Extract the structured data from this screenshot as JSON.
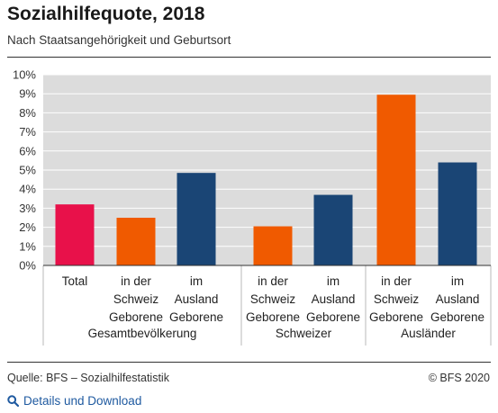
{
  "header": {
    "title": "Sozialhilfequote, 2018",
    "subtitle": "Nach Staatsangehörigkeit und Geburtsort"
  },
  "footer": {
    "source": "Quelle: BFS – Sozialhilfestatistik",
    "copyright": "© BFS 2020",
    "details_link": "Details und Download",
    "details_icon": "search-icon",
    "link_color": "#1f5aa0"
  },
  "chart_data": {
    "type": "bar",
    "ylim": [
      0,
      10
    ],
    "yticks": [
      "0%",
      "1%",
      "2%",
      "3%",
      "4%",
      "5%",
      "6%",
      "7%",
      "8%",
      "9%",
      "10%"
    ],
    "grid": true,
    "plot_background": "#dcdcdc",
    "groups": [
      {
        "label": "Gesamtbevölkerung",
        "bars": [
          {
            "label": [
              "Total"
            ],
            "value": 3.2,
            "color": "#e8114a"
          },
          {
            "label": [
              "in der",
              "Schweiz",
              "Geborene"
            ],
            "value": 2.5,
            "color": "#f05a00"
          },
          {
            "label": [
              "im",
              "Ausland",
              "Geborene"
            ],
            "value": 4.85,
            "color": "#1a4575"
          }
        ]
      },
      {
        "label": "Schweizer",
        "bars": [
          {
            "label": [
              "in der",
              "Schweiz",
              "Geborene"
            ],
            "value": 2.05,
            "color": "#f05a00"
          },
          {
            "label": [
              "im",
              "Ausland",
              "Geborene"
            ],
            "value": 3.7,
            "color": "#1a4575"
          }
        ]
      },
      {
        "label": "Ausländer",
        "bars": [
          {
            "label": [
              "in der",
              "Schweiz",
              "Geborene"
            ],
            "value": 8.95,
            "color": "#f05a00"
          },
          {
            "label": [
              "im",
              "Ausland",
              "Geborene"
            ],
            "value": 5.4,
            "color": "#1a4575"
          }
        ]
      }
    ]
  }
}
